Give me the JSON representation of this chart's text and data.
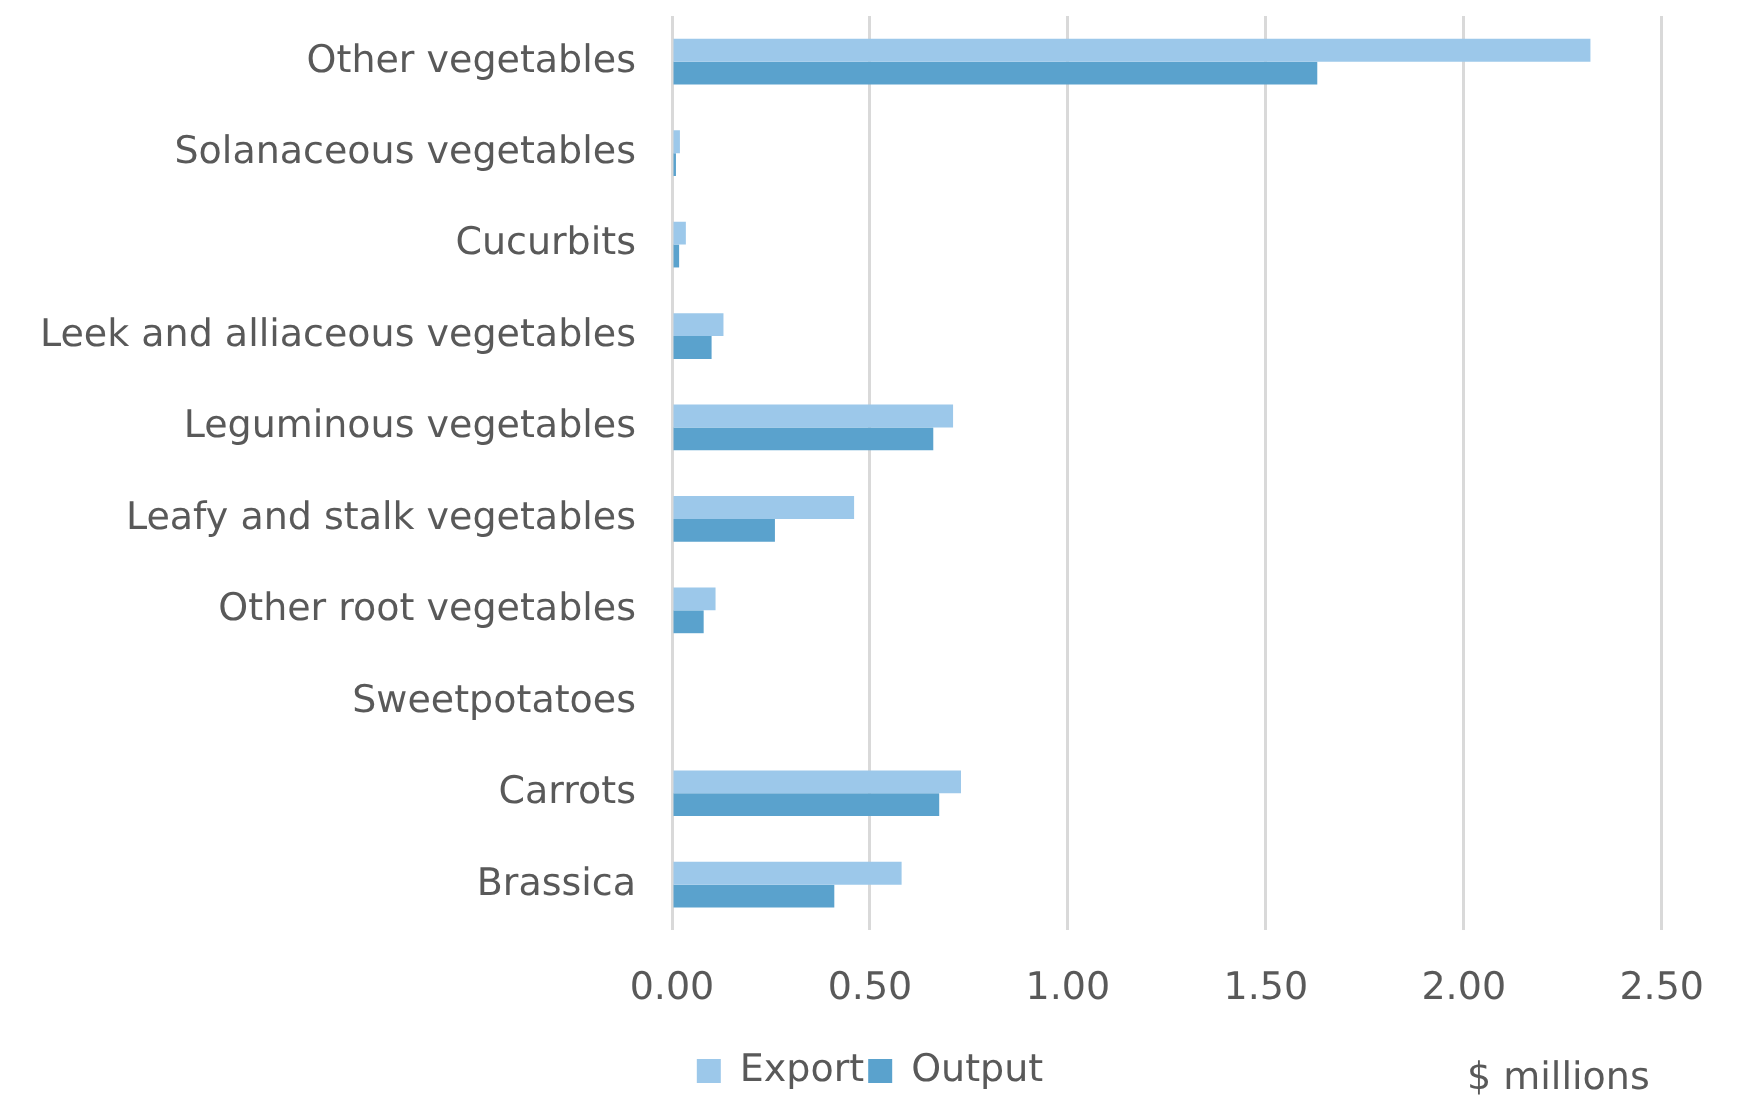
{
  "chart_data": {
    "type": "bar",
    "orientation": "horizontal",
    "categories": [
      "Other vegetables",
      "Solanaceous vegetables",
      "Cucurbits",
      "Leek and alliaceous vegetables",
      "Leguminous vegetables",
      "Leafy and stalk vegetables",
      "Other root vegetables",
      "Sweetpotatoes",
      "Carrots",
      "Brassica"
    ],
    "series": [
      {
        "name": "Export",
        "color": "#9cc8ea",
        "values": [
          2.32,
          0.02,
          0.035,
          0.13,
          0.71,
          0.46,
          0.11,
          0,
          0.73,
          0.58
        ]
      },
      {
        "name": "Output",
        "color": "#5aa2cd",
        "values": [
          1.63,
          0.01,
          0.018,
          0.1,
          0.66,
          0.26,
          0.08,
          0,
          0.675,
          0.41
        ]
      }
    ],
    "xlabel": "$ millions",
    "xlim": [
      0,
      2.5
    ],
    "xticks": [
      {
        "value": 0,
        "label": "0.00"
      },
      {
        "value": 0.5,
        "label": "0.50"
      },
      {
        "value": 1,
        "label": "1.00"
      },
      {
        "value": 1.5,
        "label": "1.50"
      },
      {
        "value": 2,
        "label": "2.00"
      },
      {
        "value": 2.5,
        "label": "2.50"
      }
    ],
    "grid": "x",
    "legend": "bottom"
  }
}
